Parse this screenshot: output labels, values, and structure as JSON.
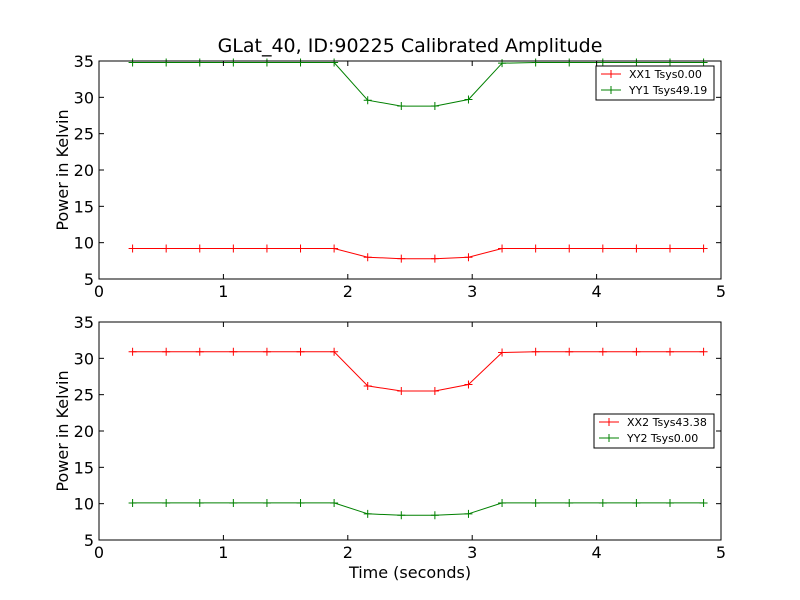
{
  "chart_data": [
    {
      "type": "line",
      "title": "GLat_40, ID:90225 Calibrated Amplitude",
      "xlabel": "",
      "ylabel": "Power in Kelvin",
      "xlim": [
        0,
        5
      ],
      "ylim": [
        5,
        35
      ],
      "xticks": [
        "0",
        "1",
        "2",
        "3",
        "4",
        "5"
      ],
      "yticks": [
        "5",
        "10",
        "15",
        "20",
        "25",
        "30",
        "35"
      ],
      "grid": false,
      "legend_position": "top-right",
      "x": [
        0.27,
        0.54,
        0.81,
        1.08,
        1.35,
        1.62,
        1.89,
        2.16,
        2.43,
        2.7,
        2.97,
        3.24,
        3.51,
        3.78,
        4.05,
        4.32,
        4.59,
        4.86
      ],
      "series": [
        {
          "name": "XX1 Tsys0.00",
          "color": "#ff0000",
          "values": [
            9.2,
            9.2,
            9.2,
            9.2,
            9.2,
            9.2,
            9.2,
            8.0,
            7.8,
            7.8,
            8.0,
            9.2,
            9.2,
            9.2,
            9.2,
            9.2,
            9.2,
            9.2
          ]
        },
        {
          "name": "YY1 Tsys49.19",
          "color": "#008000",
          "values": [
            34.8,
            34.8,
            34.8,
            34.8,
            34.8,
            34.8,
            34.8,
            29.6,
            28.8,
            28.8,
            29.7,
            34.7,
            34.8,
            34.8,
            34.8,
            34.8,
            34.8,
            34.8
          ]
        }
      ]
    },
    {
      "type": "line",
      "title": "",
      "xlabel": "Time (seconds)",
      "ylabel": "Power in Kelvin",
      "xlim": [
        0,
        5
      ],
      "ylim": [
        5,
        35
      ],
      "xticks": [
        "0",
        "1",
        "2",
        "3",
        "4",
        "5"
      ],
      "yticks": [
        "5",
        "10",
        "15",
        "20",
        "25",
        "30",
        "35"
      ],
      "grid": false,
      "legend_position": "center-right",
      "x": [
        0.27,
        0.54,
        0.81,
        1.08,
        1.35,
        1.62,
        1.89,
        2.16,
        2.43,
        2.7,
        2.97,
        3.24,
        3.51,
        3.78,
        4.05,
        4.32,
        4.59,
        4.86
      ],
      "series": [
        {
          "name": "XX2 Tsys43.38",
          "color": "#ff0000",
          "values": [
            30.9,
            30.9,
            30.9,
            30.9,
            30.9,
            30.9,
            30.9,
            26.2,
            25.5,
            25.5,
            26.4,
            30.8,
            30.9,
            30.9,
            30.9,
            30.9,
            30.9,
            30.9
          ]
        },
        {
          "name": "YY2 Tsys0.00",
          "color": "#008000",
          "values": [
            10.1,
            10.1,
            10.1,
            10.1,
            10.1,
            10.1,
            10.1,
            8.6,
            8.4,
            8.4,
            8.6,
            10.1,
            10.1,
            10.1,
            10.1,
            10.1,
            10.1,
            10.1
          ]
        }
      ]
    }
  ]
}
